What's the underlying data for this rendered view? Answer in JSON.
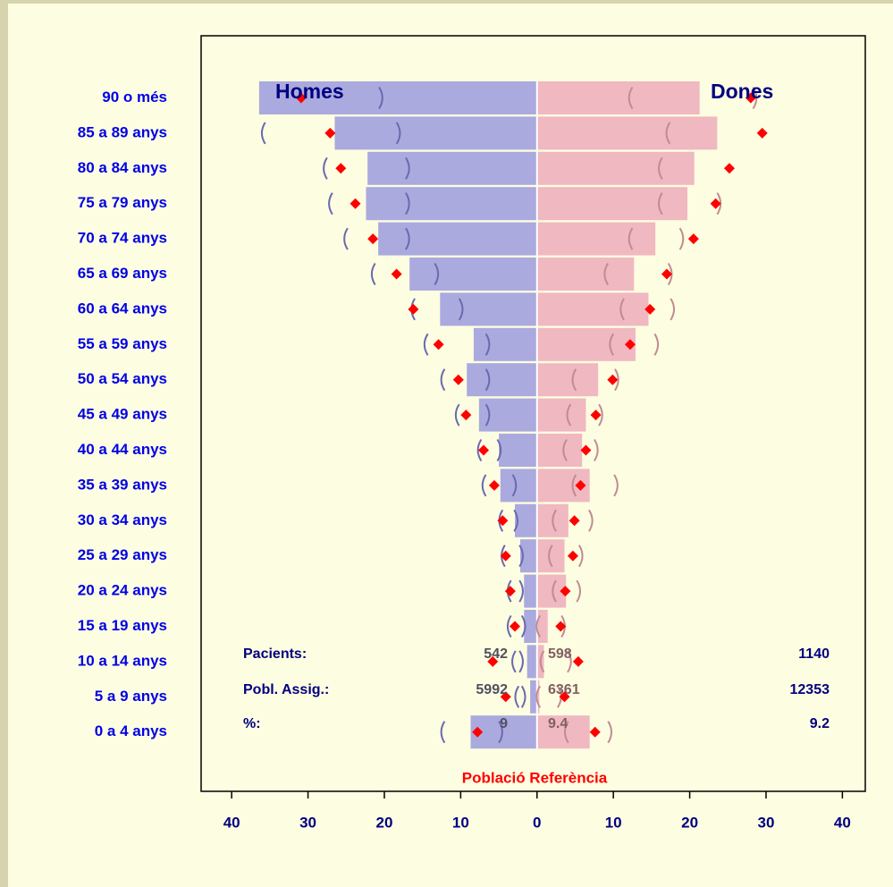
{
  "chart_data": {
    "type": "pyramid",
    "categories": [
      "90 o més",
      "85 a 89 anys",
      "80 a 84 anys",
      "75 a 79 anys",
      "70 a 74 anys",
      "65 a 69 anys",
      "60 a 64 anys",
      "55 a 59 anys",
      "50 a 54 anys",
      "45 a 49 anys",
      "40 a 44 anys",
      "35 a 39 anys",
      "30 a 34 anys",
      "25 a 29 anys",
      "20 a 24 anys",
      "15 a 19 anys",
      "10 a 14 anys",
      "5 a 9 anys",
      "0 a 4 anys"
    ],
    "series": [
      {
        "name": "Homes",
        "color": "#aaaadf",
        "side": "left",
        "values": [
          36.4,
          26.5,
          22.2,
          22.4,
          20.8,
          16.7,
          12.7,
          8.3,
          9.2,
          7.6,
          5.0,
          4.8,
          2.9,
          2.2,
          1.7,
          1.7,
          1.3,
          0.9,
          8.7
        ],
        "reference": [
          30.9,
          27.1,
          25.7,
          23.8,
          21.5,
          18.4,
          16.2,
          12.9,
          10.3,
          9.3,
          7.0,
          5.6,
          4.5,
          4.1,
          3.5,
          2.9,
          5.8,
          4.1,
          7.8
        ],
        "ci": [
          [
            null,
            20.4
          ],
          [
            35.9,
            18.1
          ],
          [
            27.8,
            16.9
          ],
          [
            27.1,
            16.9
          ],
          [
            25.1,
            16.9
          ],
          [
            21.5,
            13.1
          ],
          [
            16.3,
            9.9
          ],
          [
            14.6,
            6.4
          ],
          [
            12.4,
            6.4
          ],
          [
            10.5,
            6.4
          ],
          [
            7.6,
            4.9
          ],
          [
            7.0,
            2.9
          ],
          [
            4.8,
            2.7
          ],
          [
            4.5,
            2.0
          ],
          [
            3.7,
            2.0
          ],
          [
            3.7,
            1.7
          ],
          [
            3.1,
            2.0
          ],
          [
            2.7,
            1.7
          ],
          [
            12.4,
            4.7
          ]
        ]
      },
      {
        "name": "Dones",
        "color": "#f0b8c0",
        "side": "right",
        "values": [
          21.3,
          23.6,
          20.6,
          19.7,
          15.5,
          12.7,
          14.6,
          12.9,
          8.0,
          6.4,
          5.9,
          6.9,
          4.1,
          3.6,
          3.8,
          1.4,
          0.9,
          0.3,
          6.9
        ],
        "reference": [
          28.0,
          29.5,
          25.2,
          23.4,
          20.5,
          17.0,
          14.8,
          12.2,
          9.9,
          7.7,
          6.4,
          5.7,
          4.9,
          4.7,
          3.7,
          3.1,
          5.4,
          3.6,
          7.6
        ],
        "ci": [
          [
            12.2,
            28.6
          ],
          [
            17.1,
            null
          ],
          [
            16.1,
            null
          ],
          [
            16.1,
            23.9
          ],
          [
            12.2,
            19.0
          ],
          [
            9.0,
            17.5
          ],
          [
            11.1,
            17.8
          ],
          [
            9.7,
            15.7
          ],
          [
            4.8,
            10.5
          ],
          [
            4.1,
            8.4
          ],
          [
            3.6,
            7.8
          ],
          [
            4.8,
            10.4
          ],
          [
            2.2,
            7.1
          ],
          [
            1.7,
            5.8
          ],
          [
            2.2,
            5.5
          ],
          [
            0.1,
            3.5
          ],
          [
            0.6,
            4.3
          ],
          [
            0.1,
            3.0
          ],
          [
            3.8,
            9.6
          ]
        ]
      }
    ],
    "reference_name": "Població Referència",
    "reference_color": "#ff0000",
    "xlim": [
      -44,
      43
    ],
    "xticks": [
      {
        "value": -40,
        "label": "40"
      },
      {
        "value": -30,
        "label": "30"
      },
      {
        "value": -20,
        "label": "20"
      },
      {
        "value": -10,
        "label": "10"
      },
      0,
      10,
      20,
      30,
      40
    ],
    "stats": [
      {
        "label": "Pacients:",
        "values": [
          542,
          598,
          1140
        ]
      },
      {
        "label": "Pobl. Assig.:",
        "values": [
          5992,
          6361,
          12353
        ]
      },
      {
        "label": "%:",
        "values": [
          9,
          9.4,
          9.2
        ]
      }
    ]
  }
}
